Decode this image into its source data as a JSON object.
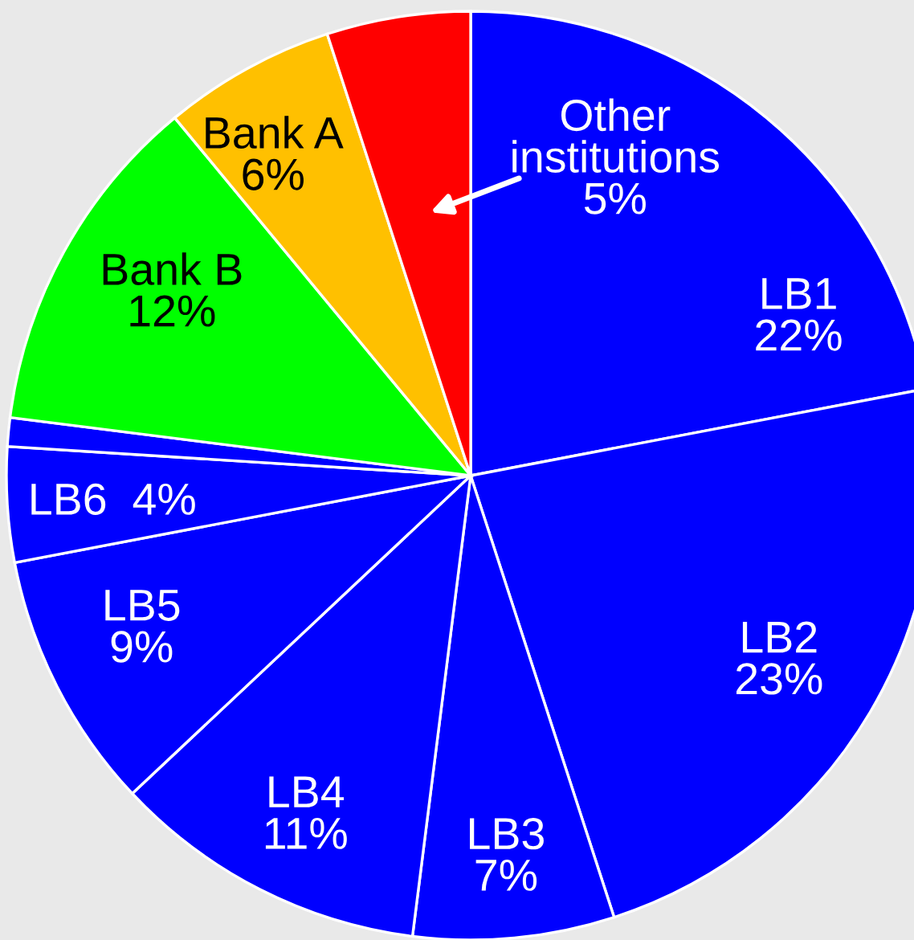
{
  "chart_data": {
    "type": "pie",
    "categories": [
      "LB1",
      "LB2",
      "LB3",
      "LB4",
      "LB5",
      "LB6",
      null,
      "Bank B",
      "Bank A",
      "Other institutions"
    ],
    "values": [
      22,
      23,
      7,
      11,
      9,
      4,
      1,
      12,
      6,
      5
    ],
    "value_labels": [
      "22%",
      "23%",
      "7%",
      "11%",
      "9%",
      "4%",
      null,
      "12%",
      "6%",
      "5%"
    ],
    "colors": [
      "#0000ff",
      "#0000ff",
      "#0000ff",
      "#0000ff",
      "#0000ff",
      "#0000ff",
      "#0000ff",
      "#00ff00",
      "#ffc000",
      "#ff0000"
    ]
  }
}
